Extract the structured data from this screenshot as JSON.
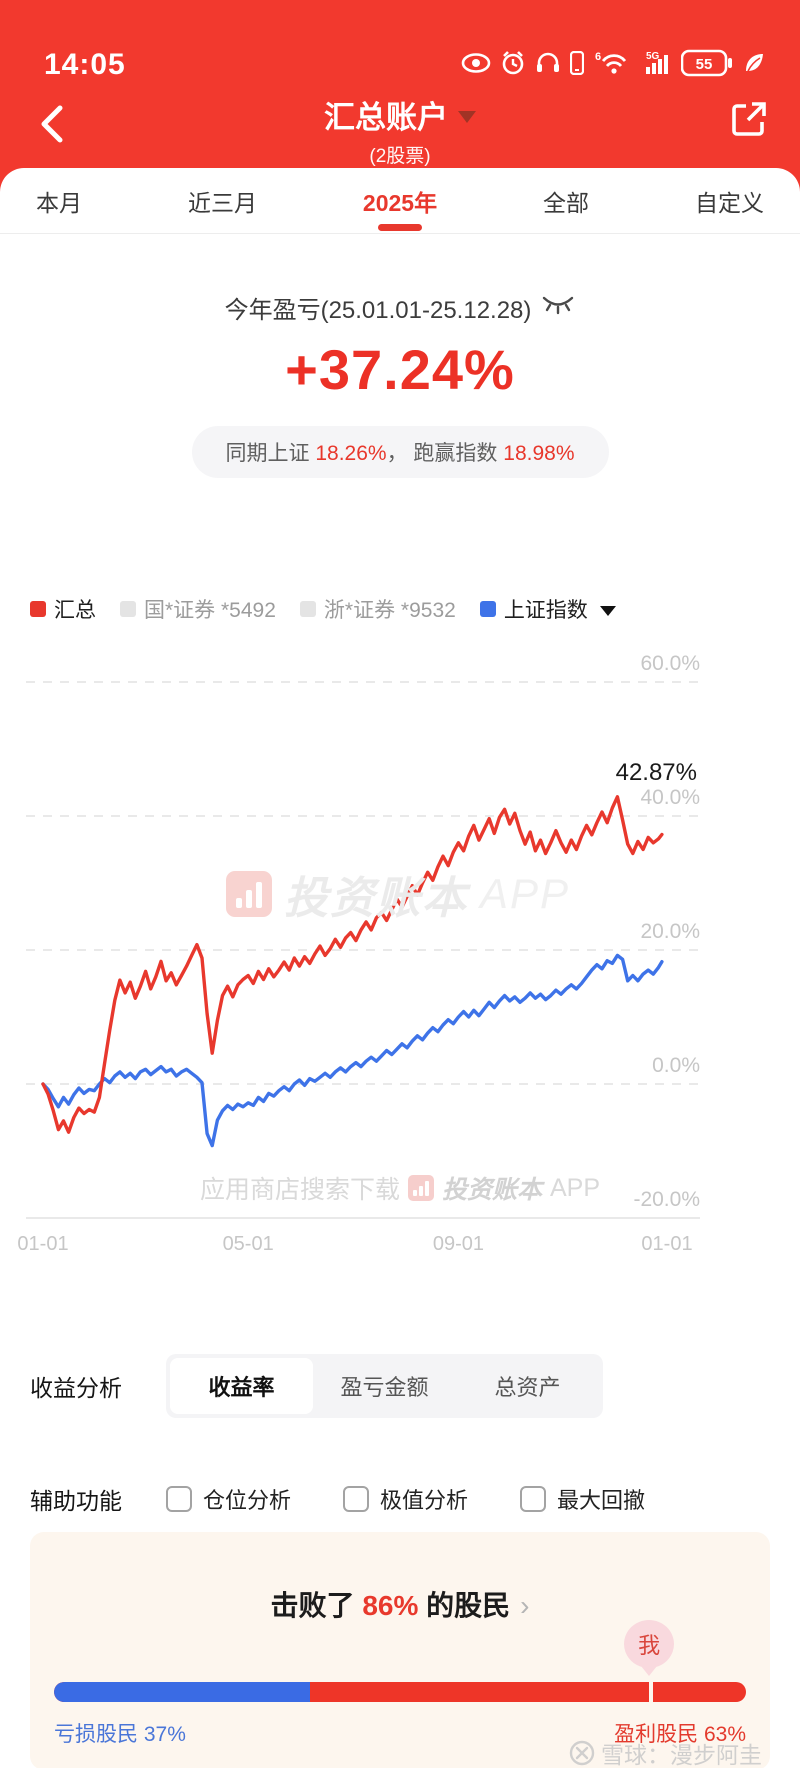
{
  "status_bar": {
    "time": "14:05",
    "battery_percent": "55",
    "network": "5G",
    "wifi_band": "6"
  },
  "header": {
    "title": "汇总账户",
    "subtitle": "(2股票)"
  },
  "tabs": [
    {
      "label": "本月",
      "active": false
    },
    {
      "label": "近三月",
      "active": false
    },
    {
      "label": "2025年",
      "active": true
    },
    {
      "label": "全部",
      "active": false
    },
    {
      "label": "自定义",
      "active": false
    }
  ],
  "summary": {
    "period_label": "今年盈亏(25.01.01-25.12.28)",
    "value": "+37.24%",
    "benchmark_prefix": "同期上证 ",
    "benchmark_value": "18.26%",
    "separator": "，  ",
    "outperform_prefix": "跑赢指数 ",
    "outperform_value": "18.98%"
  },
  "legend": [
    {
      "label": "汇总",
      "swatch": "#e8382d",
      "text_color": "#1f1f1f"
    },
    {
      "label": "国*证券 *5492",
      "swatch": "#e4e4e4",
      "text_color": "#9c9c9c"
    },
    {
      "label": "浙*证券 *9532",
      "swatch": "#e4e4e4",
      "text_color": "#9c9c9c"
    },
    {
      "label": "上证指数",
      "swatch": "#3e73e8",
      "text_color": "#1f1f1f"
    }
  ],
  "chart_data": {
    "type": "line",
    "ylim": [
      -20,
      60
    ],
    "grid": "dashed-horizontal",
    "legend_position": "top",
    "annotation": {
      "text": "42.87%"
    },
    "y_ticks": [
      {
        "label": "60.0%",
        "value": 60
      },
      {
        "label": "40.0%",
        "value": 40
      },
      {
        "label": "20.0%",
        "value": 20
      },
      {
        "label": "0.0%",
        "value": 0
      },
      {
        "label": "-20.0%",
        "value": -20
      }
    ],
    "x_ticks": [
      {
        "label": "01-01",
        "day": 0
      },
      {
        "label": "05-01",
        "day": 120
      },
      {
        "label": "09-01",
        "day": 243
      },
      {
        "label": "01-01",
        "day": 365
      }
    ],
    "series": [
      {
        "name": "汇总",
        "color": "#e8382d",
        "end_value": 37.24,
        "max_value": 42.87,
        "points": [
          [
            0,
            0
          ],
          [
            3,
            -1.5
          ],
          [
            6,
            -4
          ],
          [
            9,
            -6.8
          ],
          [
            12,
            -5.5
          ],
          [
            15,
            -7.2
          ],
          [
            18,
            -5
          ],
          [
            21,
            -3.6
          ],
          [
            24,
            -4.4
          ],
          [
            27,
            -3.8
          ],
          [
            30,
            -4.2
          ],
          [
            33,
            -2
          ],
          [
            36,
            3
          ],
          [
            39,
            8
          ],
          [
            42,
            12.5
          ],
          [
            45,
            15.5
          ],
          [
            48,
            13.6
          ],
          [
            51,
            15.2
          ],
          [
            54,
            12.8
          ],
          [
            57,
            14.6
          ],
          [
            60,
            16.8
          ],
          [
            63,
            14.2
          ],
          [
            66,
            16
          ],
          [
            69,
            18.3
          ],
          [
            72,
            15.4
          ],
          [
            75,
            16.6
          ],
          [
            78,
            14.8
          ],
          [
            81,
            16.2
          ],
          [
            84,
            17.6
          ],
          [
            87,
            19.2
          ],
          [
            90,
            20.8
          ],
          [
            93,
            18.8
          ],
          [
            96,
            10.5
          ],
          [
            99,
            4.6
          ],
          [
            102,
            9.5
          ],
          [
            105,
            13.2
          ],
          [
            108,
            14.6
          ],
          [
            111,
            13
          ],
          [
            114,
            14.8
          ],
          [
            117,
            15.6
          ],
          [
            120,
            16.2
          ],
          [
            123,
            15
          ],
          [
            126,
            16.8
          ],
          [
            129,
            15.6
          ],
          [
            132,
            17.2
          ],
          [
            135,
            16
          ],
          [
            138,
            17
          ],
          [
            141,
            18.2
          ],
          [
            144,
            17
          ],
          [
            147,
            18.8
          ],
          [
            150,
            17.6
          ],
          [
            153,
            19
          ],
          [
            156,
            18
          ],
          [
            159,
            19.4
          ],
          [
            162,
            20.6
          ],
          [
            165,
            19.2
          ],
          [
            168,
            20.2
          ],
          [
            171,
            21.6
          ],
          [
            174,
            20.4
          ],
          [
            177,
            21.8
          ],
          [
            180,
            22.6
          ],
          [
            183,
            21.4
          ],
          [
            186,
            23
          ],
          [
            189,
            24.2
          ],
          [
            192,
            23
          ],
          [
            195,
            24.8
          ],
          [
            198,
            25.6
          ],
          [
            201,
            24.4
          ],
          [
            204,
            26
          ],
          [
            207,
            27.6
          ],
          [
            210,
            26.4
          ],
          [
            213,
            28
          ],
          [
            216,
            29.6
          ],
          [
            219,
            28.2
          ],
          [
            222,
            30
          ],
          [
            225,
            31.6
          ],
          [
            228,
            30.4
          ],
          [
            231,
            32.4
          ],
          [
            234,
            34
          ],
          [
            237,
            32.6
          ],
          [
            240,
            34.6
          ],
          [
            243,
            36
          ],
          [
            246,
            34.8
          ],
          [
            249,
            37
          ],
          [
            252,
            38.6
          ],
          [
            255,
            36.4
          ],
          [
            258,
            38
          ],
          [
            261,
            39.6
          ],
          [
            264,
            37.4
          ],
          [
            267,
            39.8
          ],
          [
            270,
            41
          ],
          [
            273,
            38.8
          ],
          [
            276,
            40.4
          ],
          [
            279,
            37.8
          ],
          [
            282,
            35.8
          ],
          [
            285,
            37.6
          ],
          [
            288,
            34.8
          ],
          [
            291,
            36.4
          ],
          [
            294,
            34.4
          ],
          [
            297,
            36
          ],
          [
            300,
            37.8
          ],
          [
            303,
            36
          ],
          [
            306,
            34.6
          ],
          [
            309,
            36.4
          ],
          [
            312,
            35
          ],
          [
            315,
            37
          ],
          [
            318,
            38.6
          ],
          [
            321,
            37.2
          ],
          [
            324,
            39
          ],
          [
            327,
            40.6
          ],
          [
            330,
            39
          ],
          [
            333,
            41.2
          ],
          [
            336,
            42.87
          ],
          [
            339,
            39.4
          ],
          [
            342,
            35.8
          ],
          [
            345,
            34.4
          ],
          [
            348,
            36.2
          ],
          [
            351,
            35
          ],
          [
            354,
            36.8
          ],
          [
            357,
            36
          ],
          [
            360,
            36.6
          ],
          [
            362,
            37.24
          ]
        ]
      },
      {
        "name": "上证指数",
        "color": "#3e73e8",
        "end_value": 18.26,
        "points": [
          [
            0,
            0
          ],
          [
            3,
            -0.8
          ],
          [
            6,
            -2.2
          ],
          [
            9,
            -3.4
          ],
          [
            12,
            -2
          ],
          [
            15,
            -3
          ],
          [
            18,
            -1.6
          ],
          [
            21,
            -0.6
          ],
          [
            24,
            -1.4
          ],
          [
            27,
            -0.8
          ],
          [
            30,
            -1
          ],
          [
            33,
            0
          ],
          [
            36,
            0.8
          ],
          [
            39,
            0.2
          ],
          [
            42,
            1.2
          ],
          [
            45,
            1.8
          ],
          [
            48,
            1
          ],
          [
            51,
            1.6
          ],
          [
            54,
            0.8
          ],
          [
            57,
            1.8
          ],
          [
            60,
            2.2
          ],
          [
            63,
            1.4
          ],
          [
            66,
            2
          ],
          [
            69,
            2.6
          ],
          [
            72,
            1.8
          ],
          [
            75,
            2.2
          ],
          [
            78,
            1.2
          ],
          [
            81,
            1.8
          ],
          [
            84,
            2.2
          ],
          [
            87,
            1.6
          ],
          [
            90,
            1
          ],
          [
            93,
            0.2
          ],
          [
            96,
            -7.4
          ],
          [
            99,
            -9.2
          ],
          [
            102,
            -5.4
          ],
          [
            105,
            -4
          ],
          [
            108,
            -3.2
          ],
          [
            111,
            -3.8
          ],
          [
            114,
            -3
          ],
          [
            117,
            -3.4
          ],
          [
            120,
            -2.8
          ],
          [
            123,
            -3.2
          ],
          [
            126,
            -2
          ],
          [
            129,
            -2.6
          ],
          [
            132,
            -1.4
          ],
          [
            135,
            -1.8
          ],
          [
            138,
            -1
          ],
          [
            141,
            -0.4
          ],
          [
            144,
            -1
          ],
          [
            147,
            0
          ],
          [
            150,
            0.6
          ],
          [
            153,
            -0.2
          ],
          [
            156,
            0.8
          ],
          [
            159,
            0.4
          ],
          [
            162,
            1
          ],
          [
            165,
            1.6
          ],
          [
            168,
            1
          ],
          [
            171,
            1.8
          ],
          [
            174,
            2.4
          ],
          [
            177,
            1.8
          ],
          [
            180,
            2.6
          ],
          [
            183,
            3.2
          ],
          [
            186,
            2.6
          ],
          [
            189,
            3.4
          ],
          [
            192,
            4
          ],
          [
            195,
            3.4
          ],
          [
            198,
            4.2
          ],
          [
            201,
            5
          ],
          [
            204,
            4.4
          ],
          [
            207,
            5.2
          ],
          [
            210,
            6
          ],
          [
            213,
            5.4
          ],
          [
            216,
            6.4
          ],
          [
            219,
            7.2
          ],
          [
            222,
            6.6
          ],
          [
            225,
            7.6
          ],
          [
            228,
            8.4
          ],
          [
            231,
            7.8
          ],
          [
            234,
            8.8
          ],
          [
            237,
            9.6
          ],
          [
            240,
            9
          ],
          [
            243,
            10
          ],
          [
            246,
            10.8
          ],
          [
            249,
            10
          ],
          [
            252,
            11
          ],
          [
            255,
            10.2
          ],
          [
            258,
            11.2
          ],
          [
            261,
            12.2
          ],
          [
            264,
            11.4
          ],
          [
            267,
            12.4
          ],
          [
            270,
            13.2
          ],
          [
            273,
            12.4
          ],
          [
            276,
            13
          ],
          [
            279,
            12.2
          ],
          [
            282,
            12.8
          ],
          [
            285,
            13.6
          ],
          [
            288,
            12.8
          ],
          [
            291,
            13.4
          ],
          [
            294,
            12.6
          ],
          [
            297,
            13.2
          ],
          [
            300,
            14
          ],
          [
            303,
            13.4
          ],
          [
            306,
            14.2
          ],
          [
            309,
            14.8
          ],
          [
            312,
            14.2
          ],
          [
            315,
            15
          ],
          [
            318,
            16
          ],
          [
            321,
            17
          ],
          [
            324,
            17.8
          ],
          [
            327,
            17.2
          ],
          [
            330,
            18.4
          ],
          [
            333,
            18
          ],
          [
            336,
            19.2
          ],
          [
            339,
            18.6
          ],
          [
            342,
            15.4
          ],
          [
            345,
            16.2
          ],
          [
            348,
            15.4
          ],
          [
            351,
            16.4
          ],
          [
            354,
            17
          ],
          [
            357,
            16.4
          ],
          [
            360,
            17.4
          ],
          [
            362,
            18.26
          ]
        ]
      }
    ]
  },
  "watermarks": {
    "center_brand": "投资账本",
    "center_suffix": "APP",
    "bottom_prefix": "应用商店搜索下载",
    "bottom_brand": "投资账本",
    "bottom_suffix": "APP"
  },
  "analysis": {
    "section_label": "收益分析",
    "options": [
      {
        "label": "收益率",
        "selected": true
      },
      {
        "label": "盈亏金额",
        "selected": false
      },
      {
        "label": "总资产",
        "selected": false
      }
    ]
  },
  "aux": {
    "section_label": "辅助功能",
    "checkboxes": [
      {
        "label": "仓位分析",
        "checked": false
      },
      {
        "label": "极值分析",
        "checked": false
      },
      {
        "label": "最大回撤",
        "checked": false
      }
    ]
  },
  "beat_card": {
    "prefix": "击败了 ",
    "percent": "86%",
    "suffix": " 的股民",
    "chevron": "›",
    "me_label": "我",
    "me_position_pct": 86,
    "loss_pct": 37,
    "loss_label": "亏损股民 37%",
    "profit_label": "盈利股民 63%"
  },
  "footer_watermark": {
    "text": "雪球：漫步阿圭"
  }
}
